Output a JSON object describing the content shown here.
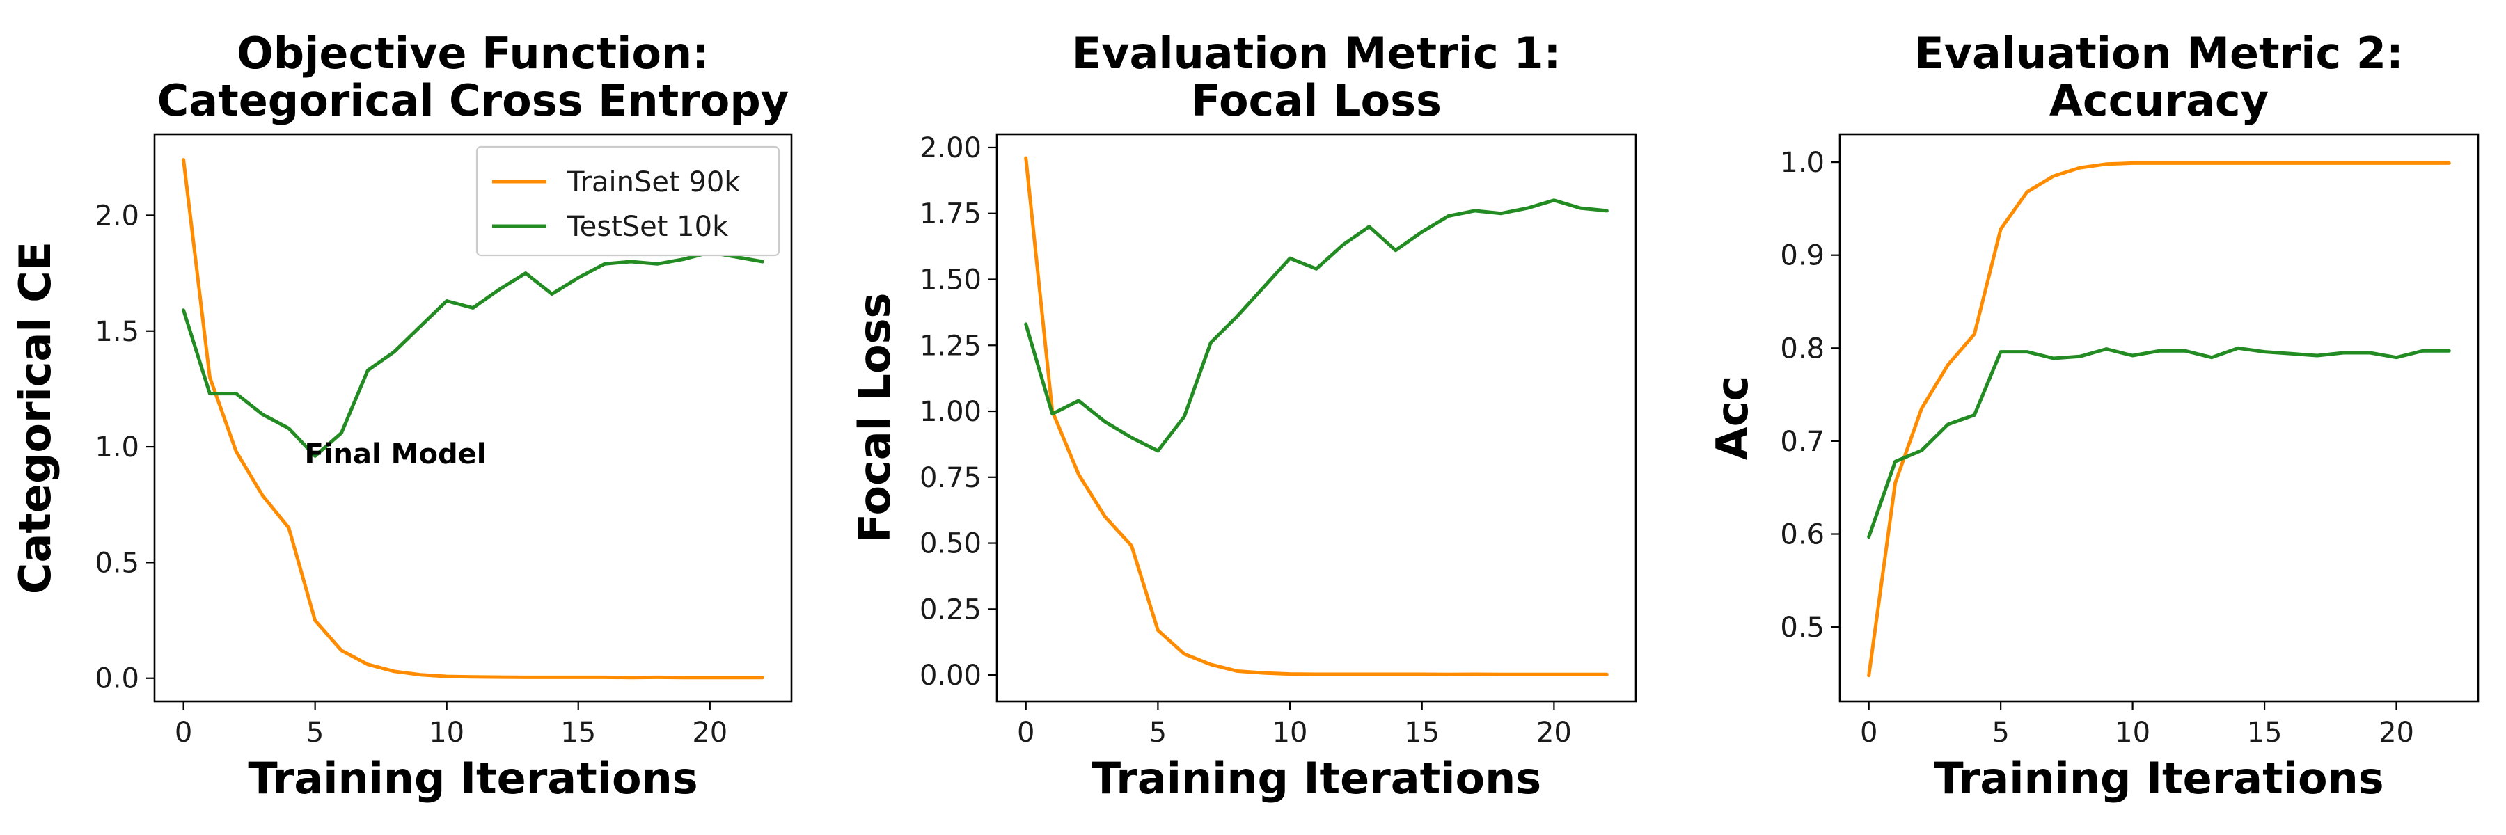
{
  "colors": {
    "train": "#ff8c00",
    "test": "#228b22"
  },
  "chart_data": [
    {
      "type": "line",
      "title": [
        "Objective Function:",
        "Categorical Cross Entropy"
      ],
      "xlabel": "Training Iterations",
      "ylabel": "Categorical CE",
      "xlim": [
        -1.1,
        23.1
      ],
      "ylim": [
        -0.1,
        2.35
      ],
      "xticks": [
        0,
        5,
        10,
        15,
        20
      ],
      "xtick_labels": [
        "0",
        "5",
        "10",
        "15",
        "20"
      ],
      "yticks": [
        0.0,
        0.5,
        1.0,
        1.5,
        2.0
      ],
      "ytick_labels": [
        "0.0",
        "0.5",
        "1.0",
        "1.5",
        "2.0"
      ],
      "legend": "top-right",
      "annotation": {
        "text": "Final Model",
        "x": 4.6,
        "y": 0.97
      },
      "x": [
        0,
        1,
        2,
        3,
        4,
        5,
        6,
        7,
        8,
        9,
        10,
        11,
        12,
        13,
        14,
        15,
        16,
        17,
        18,
        19,
        20,
        21,
        22
      ],
      "series": [
        {
          "name": "TrainSet 90k",
          "color_key": "train",
          "values": [
            2.24,
            1.3,
            0.98,
            0.79,
            0.65,
            0.25,
            0.12,
            0.06,
            0.03,
            0.015,
            0.008,
            0.006,
            0.005,
            0.004,
            0.004,
            0.004,
            0.004,
            0.003,
            0.004,
            0.003,
            0.003,
            0.003,
            0.003
          ]
        },
        {
          "name": "TestSet 10k",
          "color_key": "test",
          "values": [
            1.59,
            1.23,
            1.23,
            1.14,
            1.08,
            0.96,
            1.06,
            1.33,
            1.41,
            1.52,
            1.63,
            1.6,
            1.68,
            1.75,
            1.66,
            1.73,
            1.79,
            1.8,
            1.79,
            1.81,
            1.84,
            1.82,
            1.8
          ]
        }
      ]
    },
    {
      "type": "line",
      "title": [
        "Evaluation Metric 1:",
        "Focal Loss"
      ],
      "xlabel": "Training Iterations",
      "ylabel": "Focal Loss",
      "xlim": [
        -1.1,
        23.1
      ],
      "ylim": [
        -0.1,
        2.05
      ],
      "xticks": [
        0,
        5,
        10,
        15,
        20
      ],
      "xtick_labels": [
        "0",
        "5",
        "10",
        "15",
        "20"
      ],
      "yticks": [
        0.0,
        0.25,
        0.5,
        0.75,
        1.0,
        1.25,
        1.5,
        1.75,
        2.0
      ],
      "ytick_labels": [
        "0.00",
        "0.25",
        "0.50",
        "0.75",
        "1.00",
        "1.25",
        "1.50",
        "1.75",
        "2.00"
      ],
      "x": [
        0,
        1,
        2,
        3,
        4,
        5,
        6,
        7,
        8,
        9,
        10,
        11,
        12,
        13,
        14,
        15,
        16,
        17,
        18,
        19,
        20,
        21,
        22
      ],
      "series": [
        {
          "color_key": "train",
          "values": [
            1.96,
            1.0,
            0.76,
            0.6,
            0.49,
            0.17,
            0.08,
            0.04,
            0.015,
            0.008,
            0.004,
            0.003,
            0.003,
            0.003,
            0.003,
            0.003,
            0.002,
            0.003,
            0.002,
            0.002,
            0.002,
            0.002,
            0.002
          ]
        },
        {
          "color_key": "test",
          "values": [
            1.33,
            0.99,
            1.04,
            0.96,
            0.9,
            0.85,
            0.98,
            1.26,
            1.36,
            1.47,
            1.58,
            1.54,
            1.63,
            1.7,
            1.61,
            1.68,
            1.74,
            1.76,
            1.75,
            1.77,
            1.8,
            1.77,
            1.76
          ]
        }
      ]
    },
    {
      "type": "line",
      "title": [
        "Evaluation Metric 2:",
        "Accuracy"
      ],
      "xlabel": "Training Iterations",
      "ylabel": "Acc",
      "xlim": [
        -1.1,
        23.1
      ],
      "ylim": [
        0.42,
        1.03
      ],
      "xticks": [
        0,
        5,
        10,
        15,
        20
      ],
      "xtick_labels": [
        "0",
        "5",
        "10",
        "15",
        "20"
      ],
      "yticks": [
        0.5,
        0.6,
        0.7,
        0.8,
        0.9,
        1.0
      ],
      "ytick_labels": [
        "0.5",
        "0.6",
        "0.7",
        "0.8",
        "0.9",
        "1.0"
      ],
      "x": [
        0,
        1,
        2,
        3,
        4,
        5,
        6,
        7,
        8,
        9,
        10,
        11,
        12,
        13,
        14,
        15,
        16,
        17,
        18,
        19,
        20,
        21,
        22
      ],
      "series": [
        {
          "color_key": "train",
          "values": [
            0.448,
            0.655,
            0.735,
            0.782,
            0.815,
            0.928,
            0.968,
            0.985,
            0.994,
            0.998,
            0.999,
            0.999,
            0.999,
            0.999,
            0.999,
            0.999,
            0.999,
            0.999,
            0.999,
            0.999,
            0.999,
            0.999,
            0.999
          ]
        },
        {
          "color_key": "test",
          "values": [
            0.597,
            0.678,
            0.69,
            0.718,
            0.728,
            0.796,
            0.796,
            0.789,
            0.791,
            0.799,
            0.792,
            0.797,
            0.797,
            0.79,
            0.8,
            0.796,
            0.794,
            0.792,
            0.795,
            0.795,
            0.79,
            0.797,
            0.797
          ]
        }
      ]
    }
  ]
}
